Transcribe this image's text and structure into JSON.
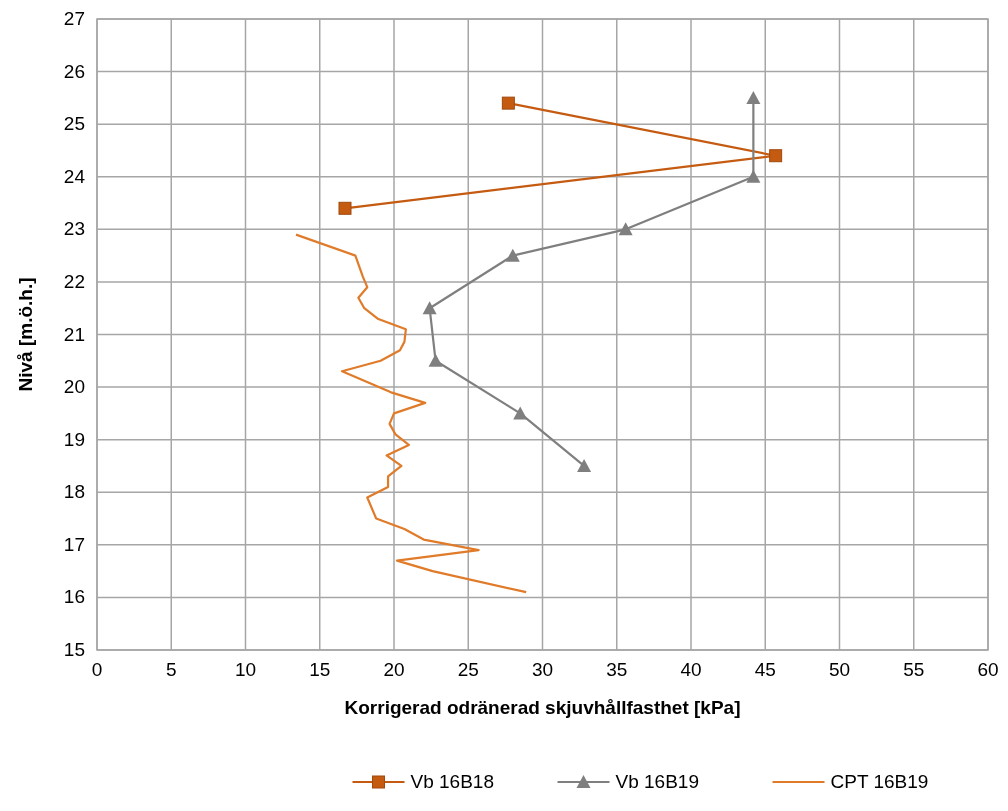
{
  "chart_data": {
    "type": "line",
    "xlabel": "Korrigerad odränerad skjuvhållfasthet [kPa]",
    "ylabel": "Nivå [m.ö.h.]",
    "xlim": [
      0,
      60
    ],
    "xticks": [
      0,
      5,
      10,
      15,
      20,
      25,
      30,
      35,
      40,
      45,
      50,
      55,
      60
    ],
    "ylim": [
      15,
      27
    ],
    "yticks": [
      15,
      16,
      17,
      18,
      19,
      20,
      21,
      22,
      23,
      24,
      25,
      26,
      27
    ],
    "grid": true,
    "legend": "bottom",
    "series": [
      {
        "name": "Vb 16B18",
        "color": "#c55a11",
        "marker": "square",
        "x": [
          27.7,
          45.7,
          16.7
        ],
        "values": [
          25.4,
          24.4,
          23.4
        ]
      },
      {
        "name": "Vb 16B19",
        "color": "#7f7f7f",
        "marker": "triangle",
        "x": [
          44.2,
          44.2,
          35.6,
          28,
          22.4,
          22.8,
          28.5,
          32.8
        ],
        "values": [
          25.5,
          24,
          23,
          22.5,
          21.5,
          20.5,
          19.5,
          18.5
        ]
      },
      {
        "name": "CPT 16B19",
        "color": "#e07b2a",
        "marker": "none",
        "x": [
          13.4,
          17.4,
          17.9,
          18.2,
          17.6,
          18.0,
          18.9,
          20.8,
          20.7,
          20.4,
          19.1,
          16.5,
          19.8,
          22.1,
          20.0,
          19.7,
          20.1,
          21.0,
          19.5,
          20.5,
          19.6,
          19.6,
          18.2,
          18.8,
          20.7,
          22.0,
          25.7,
          20.2,
          22.6,
          28.9
        ],
        "values": [
          22.9,
          22.5,
          22.1,
          21.9,
          21.7,
          21.5,
          21.3,
          21.1,
          20.86,
          20.7,
          20.5,
          20.3,
          19.9,
          19.7,
          19.5,
          19.3,
          19.1,
          18.9,
          18.7,
          18.5,
          18.3,
          18.1,
          17.9,
          17.5,
          17.3,
          17.1,
          16.9,
          16.7,
          16.5,
          16.1
        ]
      }
    ]
  }
}
